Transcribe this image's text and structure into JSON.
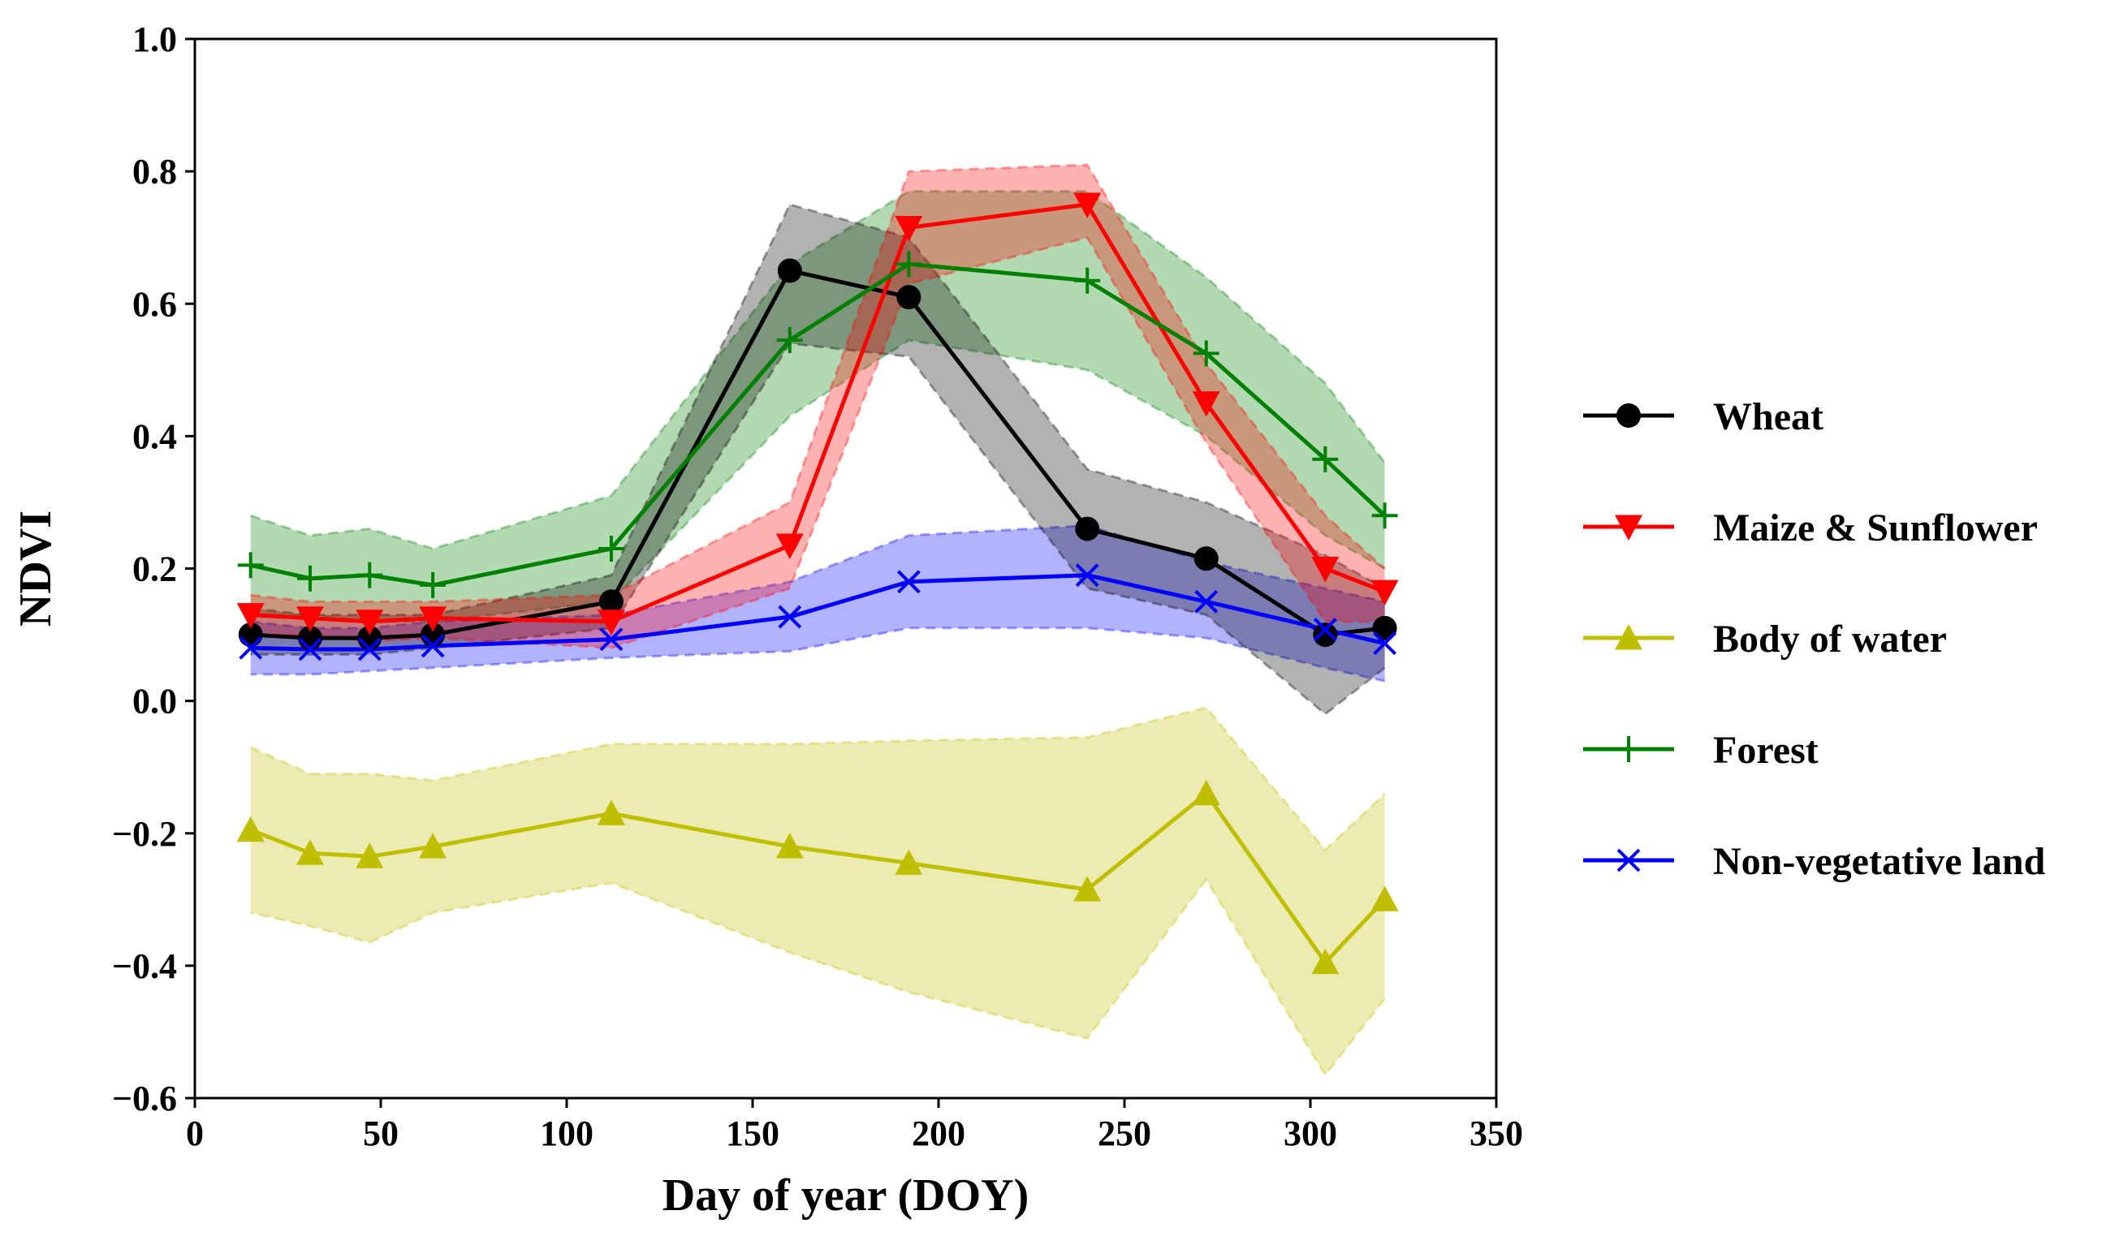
{
  "chart_data": {
    "type": "line",
    "title": "",
    "xlabel": "Day of year (DOY)",
    "ylabel": "NDVI",
    "xlim": [
      0,
      350
    ],
    "ylim": [
      -0.6,
      1.0
    ],
    "xticks": [
      0,
      50,
      100,
      150,
      200,
      250,
      300,
      350
    ],
    "xtick_labels": [
      "0",
      "50",
      "100",
      "150",
      "200",
      "250",
      "300",
      "350"
    ],
    "yticks": [
      -0.6,
      -0.4,
      -0.2,
      0.0,
      0.2,
      0.4,
      0.6,
      0.8,
      1.0
    ],
    "ytick_labels": [
      "−0.6",
      "−0.4",
      "−0.2",
      "0.0",
      "0.2",
      "0.4",
      "0.6",
      "0.8",
      "1.0"
    ],
    "grid": false,
    "legend_position": "right",
    "x": [
      15,
      31,
      47,
      64,
      112,
      160,
      192,
      240,
      272,
      304,
      320
    ],
    "series": [
      {
        "name": "Wheat",
        "color": "#000000",
        "marker": "circle",
        "values": [
          0.1,
          0.095,
          0.095,
          0.1,
          0.15,
          0.65,
          0.61,
          0.26,
          0.215,
          0.1,
          0.11
        ],
        "lower": [
          0.07,
          0.07,
          0.07,
          0.08,
          0.11,
          0.54,
          0.52,
          0.17,
          0.13,
          -0.02,
          0.05
        ],
        "upper": [
          0.14,
          0.13,
          0.13,
          0.13,
          0.19,
          0.75,
          0.7,
          0.35,
          0.3,
          0.22,
          0.17
        ]
      },
      {
        "name": "Maize & Sunflower",
        "color": "#ff0000",
        "marker": "triangle-down",
        "values": [
          0.13,
          0.125,
          0.12,
          0.125,
          0.12,
          0.235,
          0.715,
          0.75,
          0.45,
          0.2,
          0.165
        ],
        "lower": [
          0.1,
          0.1,
          0.09,
          0.095,
          0.08,
          0.17,
          0.63,
          0.7,
          0.39,
          0.12,
          0.12
        ],
        "upper": [
          0.16,
          0.15,
          0.15,
          0.15,
          0.16,
          0.3,
          0.8,
          0.81,
          0.51,
          0.28,
          0.2
        ]
      },
      {
        "name": "Body of water",
        "color": "#bfbf00",
        "marker": "triangle-up",
        "values": [
          -0.195,
          -0.23,
          -0.235,
          -0.22,
          -0.17,
          -0.22,
          -0.245,
          -0.285,
          -0.14,
          -0.395,
          -0.3
        ],
        "lower": [
          -0.32,
          -0.34,
          -0.365,
          -0.32,
          -0.275,
          -0.38,
          -0.44,
          -0.51,
          -0.27,
          -0.565,
          -0.45
        ],
        "upper": [
          -0.07,
          -0.11,
          -0.11,
          -0.12,
          -0.065,
          -0.065,
          -0.06,
          -0.055,
          -0.01,
          -0.225,
          -0.14
        ]
      },
      {
        "name": "Forest",
        "color": "#008000",
        "marker": "plus",
        "values": [
          0.205,
          0.185,
          0.19,
          0.175,
          0.23,
          0.545,
          0.66,
          0.635,
          0.525,
          0.365,
          0.28
        ],
        "lower": [
          0.13,
          0.13,
          0.12,
          0.12,
          0.15,
          0.43,
          0.545,
          0.5,
          0.4,
          0.25,
          0.2
        ],
        "upper": [
          0.28,
          0.25,
          0.26,
          0.23,
          0.31,
          0.66,
          0.77,
          0.77,
          0.64,
          0.48,
          0.36
        ]
      },
      {
        "name": "Non-vegetative land",
        "color": "#0000ff",
        "marker": "x",
        "values": [
          0.08,
          0.078,
          0.078,
          0.083,
          0.093,
          0.127,
          0.18,
          0.19,
          0.15,
          0.108,
          0.087
        ],
        "lower": [
          0.04,
          0.04,
          0.045,
          0.05,
          0.065,
          0.075,
          0.11,
          0.11,
          0.095,
          0.05,
          0.03
        ],
        "upper": [
          0.12,
          0.11,
          0.11,
          0.12,
          0.13,
          0.18,
          0.25,
          0.265,
          0.21,
          0.17,
          0.15
        ]
      }
    ]
  }
}
